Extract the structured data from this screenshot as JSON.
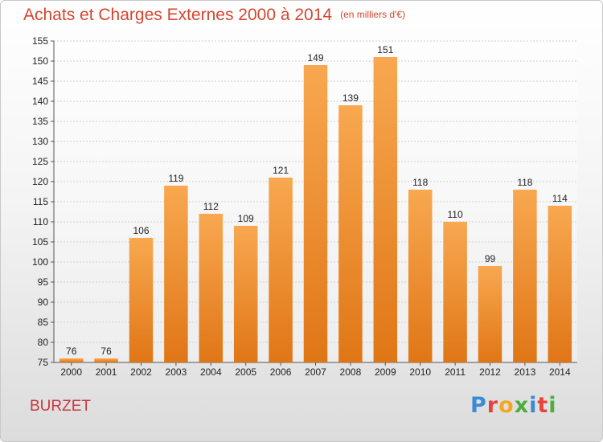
{
  "header": {
    "title": "Achats et Charges Externes 2000 à 2014",
    "unit": "(en milliers d'€)"
  },
  "footer": {
    "town": "BURZET",
    "logo": [
      "P",
      "r",
      "o",
      "x",
      "i",
      "t",
      "i"
    ],
    "logo_colors": [
      "#3b8ad4",
      "#e8423c",
      "#f5a623",
      "#4cae3c",
      "#3b8ad4",
      "#e8423c",
      "#4cae3c"
    ]
  },
  "colors": {
    "bar_top": "#f8a850",
    "bar_bottom": "#e07616",
    "grid": "#cfcfcf",
    "axis": "#555555"
  },
  "chart_data": {
    "type": "bar",
    "title": "Achats et Charges Externes 2000 à 2014",
    "subtitle": "(en milliers d'€)",
    "categories": [
      "2000",
      "2001",
      "2002",
      "2003",
      "2004",
      "2005",
      "2006",
      "2007",
      "2008",
      "2009",
      "2010",
      "2011",
      "2012",
      "2013",
      "2014"
    ],
    "values": [
      76,
      76,
      106,
      119,
      112,
      109,
      121,
      149,
      139,
      151,
      118,
      110,
      99,
      118,
      114
    ],
    "ylim": [
      75,
      155
    ],
    "yticks": [
      75,
      80,
      85,
      90,
      95,
      100,
      105,
      110,
      115,
      120,
      125,
      130,
      135,
      140,
      145,
      150,
      155
    ],
    "grid": true,
    "data_labels": true
  }
}
